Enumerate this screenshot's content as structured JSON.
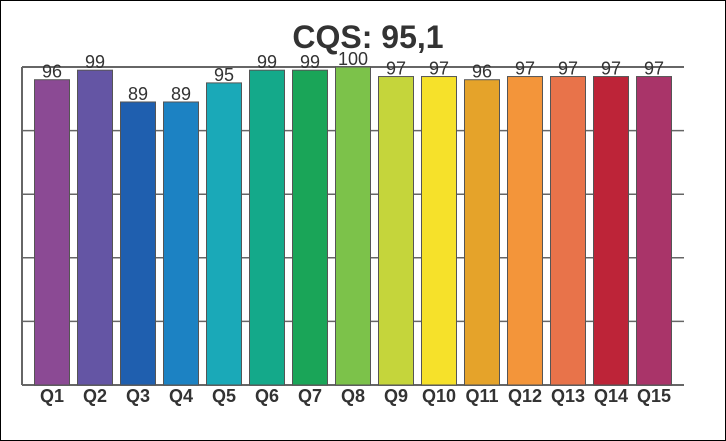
{
  "chart_data": {
    "type": "bar",
    "title": "CQS: 95,1",
    "xlabel": "",
    "ylabel": "",
    "ylim": [
      0,
      100
    ],
    "grid": true,
    "legend": "none",
    "categories": [
      "Q1",
      "Q2",
      "Q3",
      "Q4",
      "Q5",
      "Q6",
      "Q7",
      "Q8",
      "Q9",
      "Q10",
      "Q11",
      "Q12",
      "Q13",
      "Q14",
      "Q15"
    ],
    "values": [
      96,
      99,
      89,
      89,
      95,
      99,
      99,
      100,
      97,
      97,
      96,
      97,
      97,
      97,
      97
    ],
    "data_labels": [
      "96",
      "99",
      "89",
      "89",
      "95",
      "99",
      "99",
      "100",
      "97",
      "97",
      "96",
      "97",
      "97",
      "97",
      "97"
    ],
    "colors": [
      "#8b4a94",
      "#6455a4",
      "#1f5faf",
      "#1c82c3",
      "#1aa9b8",
      "#14a98a",
      "#1aa558",
      "#7cc24a",
      "#c5d53b",
      "#f6e12a",
      "#e5a32a",
      "#f3953a",
      "#e8734a",
      "#bd2438",
      "#a93469"
    ],
    "colors_note": "per-bar fill colors"
  },
  "style": {
    "grid_color": "#666666",
    "text_color": "#333333",
    "background": "#ffffff"
  }
}
